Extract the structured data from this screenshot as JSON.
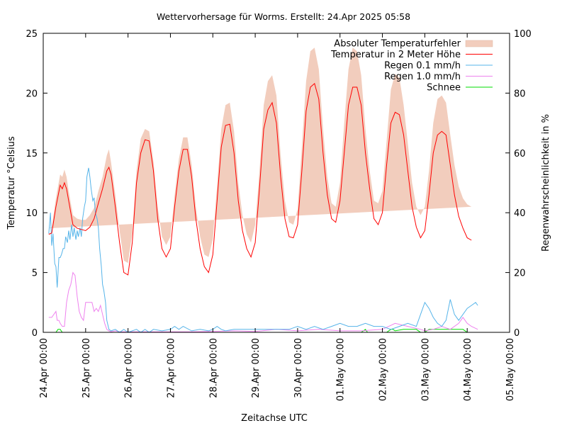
{
  "chart_data": {
    "type": "line",
    "title": "Wettervorhersage für Worms. Erstellt: 24.Apr 2025 05:58",
    "xlabel": "Zeitachse UTC",
    "ylabel": "Temperatur °Celsius",
    "y2label": "Regenwahrscheinlichkeit in %",
    "xlim_days": [
      0,
      11
    ],
    "ylim": [
      0,
      25
    ],
    "y2lim": [
      0,
      100
    ],
    "grid": false,
    "legend_position": "top-right",
    "x_ticks": [
      "24.Apr 00:00",
      "25.Apr 00:00",
      "26.Apr 00:00",
      "27.Apr 00:00",
      "28.Apr 00:00",
      "29.Apr 00:00",
      "30.Apr 00:00",
      "01.May 00:00",
      "02.May 00:00",
      "03.May 00:00",
      "04.May 00:00",
      "05.May 00:00"
    ],
    "y_ticks": [
      0,
      5,
      10,
      15,
      20,
      25
    ],
    "y2_ticks": [
      0,
      20,
      40,
      60,
      80,
      100
    ],
    "colors": {
      "band": "#f2cdbd",
      "temperature": "#ff0000",
      "rain01": "#56b4e9",
      "rain10": "#ee82ee",
      "snow": "#00dd00"
    },
    "legend": [
      {
        "key": "band",
        "label": "Absoluter Temperaturfehler"
      },
      {
        "key": "temperature",
        "label": "Temperatur in 2 Meter Höhe"
      },
      {
        "key": "rain01",
        "label": "Regen 0.1 mm/h"
      },
      {
        "key": "rain10",
        "label": "Regen 1.0 mm/h"
      },
      {
        "key": "snow",
        "label": "Schnee"
      }
    ],
    "temperature": {
      "name": "Temperatur in 2 Meter Höhe",
      "unit": "°C",
      "x_days": [
        0.13,
        0.2,
        0.3,
        0.4,
        0.45,
        0.5,
        0.55,
        0.6,
        0.7,
        0.8,
        0.9,
        1.0,
        1.1,
        1.2,
        1.3,
        1.4,
        1.5,
        1.55,
        1.6,
        1.7,
        1.8,
        1.9,
        2.0,
        2.1,
        2.2,
        2.3,
        2.4,
        2.5,
        2.6,
        2.7,
        2.8,
        2.9,
        3.0,
        3.1,
        3.2,
        3.3,
        3.4,
        3.5,
        3.6,
        3.7,
        3.8,
        3.9,
        4.0,
        4.1,
        4.2,
        4.3,
        4.4,
        4.5,
        4.6,
        4.7,
        4.8,
        4.9,
        5.0,
        5.1,
        5.2,
        5.3,
        5.4,
        5.5,
        5.6,
        5.7,
        5.8,
        5.9,
        6.0,
        6.1,
        6.2,
        6.3,
        6.4,
        6.5,
        6.6,
        6.7,
        6.8,
        6.9,
        7.0,
        7.1,
        7.2,
        7.3,
        7.4,
        7.5,
        7.6,
        7.7,
        7.8,
        7.9,
        8.0,
        8.1,
        8.2,
        8.3,
        8.4,
        8.5,
        8.6,
        8.7,
        8.8,
        8.9,
        9.0,
        9.1,
        9.2,
        9.3,
        9.4,
        9.5,
        9.6,
        9.7,
        9.8,
        9.9,
        10.0,
        10.1,
        10.2,
        10.25
      ],
      "values": [
        8.2,
        8.3,
        10.5,
        12.3,
        12.0,
        12.5,
        12.0,
        11.0,
        9.0,
        8.7,
        8.6,
        8.5,
        8.8,
        9.5,
        10.8,
        12.0,
        13.5,
        13.8,
        13.2,
        10.5,
        7.5,
        5.0,
        4.8,
        7.5,
        12.5,
        15.0,
        16.1,
        16.0,
        13.5,
        9.5,
        7.0,
        6.3,
        7.0,
        10.5,
        13.5,
        15.3,
        15.3,
        13.0,
        9.5,
        7.0,
        5.5,
        5.0,
        6.5,
        11.0,
        15.5,
        17.3,
        17.4,
        15.0,
        11.0,
        8.5,
        7.0,
        6.3,
        7.5,
        12.0,
        17.0,
        18.6,
        19.2,
        17.5,
        13.0,
        9.5,
        8.0,
        7.9,
        9.0,
        13.5,
        18.5,
        20.5,
        20.8,
        19.5,
        15.0,
        11.5,
        9.5,
        9.2,
        11.0,
        15.0,
        19.0,
        20.5,
        20.5,
        19.0,
        15.0,
        12.0,
        9.5,
        9.0,
        10.0,
        14.0,
        17.5,
        18.4,
        18.2,
        16.5,
        13.5,
        10.5,
        8.8,
        7.9,
        8.5,
        11.5,
        15.0,
        16.5,
        16.8,
        16.5,
        14.0,
        11.5,
        9.7,
        8.7,
        7.9,
        7.7
      ]
    },
    "temperature_error_band": {
      "name": "Absoluter Temperaturfehler",
      "unit": "°C",
      "lower": [
        7.7,
        7.8,
        9.8,
        11.3,
        11.0,
        11.5,
        11.2,
        10.3,
        8.2,
        7.9,
        7.7,
        7.6,
        7.9,
        8.6,
        9.8,
        11.0,
        12.5,
        12.8,
        12.3,
        9.5,
        6.5,
        4.0,
        3.8,
        6.8,
        11.7,
        14.2,
        15.2,
        15.1,
        12.6,
        8.5,
        6.2,
        5.4,
        6.0,
        9.5,
        12.5,
        14.3,
        14.2,
        12.0,
        8.6,
        6.0,
        4.6,
        3.2,
        5.3,
        9.8,
        14.0,
        15.4,
        15.5,
        13.5,
        9.8,
        7.4,
        6.0,
        5.3,
        6.3,
        10.8,
        15.0,
        16.2,
        16.8,
        15.0,
        11.5,
        8.3,
        7.0,
        6.8,
        8.0,
        12.0,
        16.0,
        17.5,
        17.8,
        17.0,
        13.0,
        10.2,
        8.3,
        8.0,
        9.5,
        13.0,
        16.2,
        17.5,
        17.5,
        16.5,
        13.0,
        10.5,
        8.2,
        7.8,
        8.6,
        12.2,
        14.7,
        15.0,
        14.8,
        13.8,
        11.0,
        8.5,
        6.8,
        6.0,
        6.5,
        9.5,
        12.5,
        13.8,
        14.2,
        14.0,
        11.5,
        9.0,
        7.2,
        5.8,
        4.8,
        4.7
      ],
      "upper": [
        8.7,
        8.8,
        11.2,
        13.2,
        13.0,
        13.6,
        13.0,
        11.8,
        9.8,
        9.5,
        9.4,
        9.4,
        9.8,
        10.4,
        11.8,
        13.0,
        14.8,
        15.3,
        14.2,
        11.5,
        8.5,
        6.0,
        5.8,
        8.3,
        13.5,
        16.2,
        17.0,
        16.8,
        14.3,
        10.5,
        8.0,
        7.3,
        8.0,
        11.5,
        14.5,
        16.3,
        16.3,
        14.0,
        10.5,
        8.0,
        6.5,
        6.3,
        7.8,
        12.3,
        17.0,
        19.0,
        19.2,
        16.8,
        12.5,
        9.8,
        8.2,
        7.5,
        9.0,
        13.5,
        19.0,
        21.0,
        21.5,
        19.8,
        14.8,
        11.0,
        9.2,
        9.0,
        10.3,
        15.5,
        21.0,
        23.5,
        23.8,
        22.0,
        17.0,
        13.0,
        10.8,
        10.5,
        12.5,
        17.5,
        22.0,
        23.8,
        23.5,
        21.5,
        17.0,
        13.5,
        11.0,
        10.8,
        11.8,
        16.0,
        20.3,
        21.6,
        21.3,
        19.0,
        15.8,
        12.5,
        10.5,
        9.8,
        10.5,
        13.5,
        17.5,
        19.5,
        19.8,
        19.2,
        16.5,
        14.0,
        12.2,
        11.2,
        10.7,
        10.5
      ]
    },
    "rain_01": {
      "name": "Regen 0.1 mm/h",
      "unit": "%",
      "x_days": [
        0.13,
        0.17,
        0.2,
        0.23,
        0.27,
        0.3,
        0.33,
        0.37,
        0.4,
        0.43,
        0.47,
        0.5,
        0.53,
        0.57,
        0.6,
        0.63,
        0.67,
        0.7,
        0.73,
        0.77,
        0.8,
        0.83,
        0.87,
        0.9,
        0.93,
        0.97,
        1.0,
        1.03,
        1.07,
        1.1,
        1.13,
        1.17,
        1.2,
        1.23,
        1.27,
        1.3,
        1.33,
        1.37,
        1.4,
        1.43,
        1.47,
        1.5,
        1.55,
        1.6,
        1.7,
        1.8,
        1.9,
        2.0,
        2.2,
        2.3,
        2.4,
        2.5,
        2.6,
        2.8,
        3.0,
        3.1,
        3.2,
        3.3,
        3.5,
        3.7,
        3.9,
        4.0,
        4.1,
        4.2,
        4.3,
        4.5,
        4.7,
        4.9,
        5.0,
        5.3,
        5.5,
        5.8,
        6.0,
        6.2,
        6.4,
        6.6,
        6.8,
        7.0,
        7.2,
        7.4,
        7.6,
        7.8,
        8.0,
        8.2,
        8.4,
        8.6,
        8.8,
        8.9,
        9.0,
        9.1,
        9.2,
        9.3,
        9.4,
        9.5,
        9.6,
        9.7,
        9.8,
        9.9,
        10.0,
        10.1,
        10.2,
        10.25
      ],
      "values": [
        33,
        40,
        29,
        33,
        23,
        22,
        15,
        25,
        25,
        26,
        28,
        28,
        32,
        30,
        34,
        31,
        36,
        32,
        35,
        31,
        34,
        32,
        35,
        32,
        38,
        42,
        44,
        52,
        55,
        52,
        48,
        44,
        45,
        40,
        38,
        35,
        28,
        22,
        16,
        14,
        10,
        4,
        1,
        0.5,
        1,
        0,
        1,
        0,
        1,
        0,
        1,
        0,
        1,
        0.5,
        1,
        2,
        1,
        2,
        0.5,
        1,
        0.5,
        1,
        2,
        1,
        0.5,
        1,
        1,
        1,
        1,
        1,
        1,
        1,
        2,
        1,
        2,
        1,
        2,
        3,
        2,
        2,
        3,
        2,
        2,
        1,
        2,
        3,
        2,
        6,
        10,
        8,
        5,
        3,
        2,
        4,
        11,
        6,
        4,
        6,
        8,
        9,
        10,
        9
      ]
    },
    "rain_10": {
      "name": "Regen 1.0 mm/h",
      "unit": "%",
      "x_days": [
        0.13,
        0.2,
        0.3,
        0.33,
        0.37,
        0.4,
        0.45,
        0.5,
        0.55,
        0.6,
        0.65,
        0.7,
        0.75,
        0.8,
        0.85,
        0.9,
        0.95,
        1.0,
        1.05,
        1.1,
        1.15,
        1.2,
        1.25,
        1.3,
        1.35,
        1.4,
        1.45,
        1.5,
        1.55,
        1.6,
        1.7,
        1.8,
        2.0,
        2.5,
        3.0,
        3.5,
        4.0,
        4.5,
        5.0,
        5.5,
        6.0,
        6.5,
        7.0,
        7.5,
        8.0,
        8.3,
        8.6,
        8.9,
        9.0,
        9.2,
        9.4,
        9.6,
        9.8,
        9.9,
        10.0,
        10.1,
        10.25
      ],
      "values": [
        5,
        5,
        7,
        4,
        4,
        3,
        2,
        2,
        10,
        14,
        16,
        20,
        19,
        12,
        7,
        5,
        4,
        10,
        10,
        10,
        10,
        7,
        8,
        7,
        9,
        6,
        3,
        1,
        0.5,
        0.2,
        0.5,
        0.2,
        0.2,
        0.2,
        0.2,
        0.2,
        0.3,
        0.5,
        0.3,
        1,
        0.5,
        1,
        0.5,
        0.5,
        1,
        3,
        2,
        1,
        0.5,
        1,
        2,
        1,
        3,
        5,
        3,
        2,
        1
      ]
    },
    "snow": {
      "name": "Schnee",
      "unit": "%",
      "x_days": [
        0.3,
        0.35,
        0.4,
        0.45,
        0.5,
        1.0,
        7.5,
        7.6,
        7.65,
        7.7,
        8.0,
        8.1,
        8.2,
        8.25,
        8.3,
        8.5,
        8.8,
        8.9,
        9.0,
        9.05,
        9.1,
        9.5,
        9.9,
        10.0
      ],
      "values": [
        0,
        1,
        1,
        0,
        0,
        0,
        0,
        1,
        0,
        0,
        0,
        0,
        1,
        1,
        0.5,
        1,
        1,
        0,
        0,
        0.5,
        1,
        1,
        1,
        0
      ]
    }
  }
}
